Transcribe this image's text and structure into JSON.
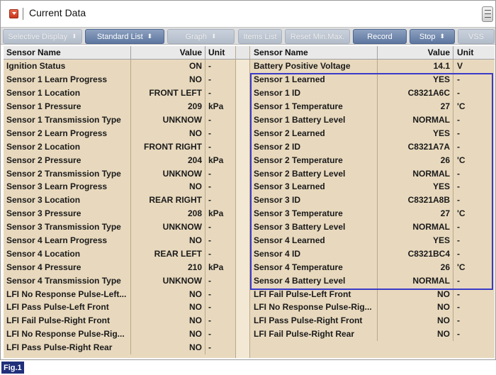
{
  "window": {
    "title": "Current Data"
  },
  "toolbar": {
    "buttons": [
      {
        "label": "Selective Display",
        "state": "disabled",
        "dropdown": true
      },
      {
        "label": "Standard List",
        "state": "active",
        "dropdown": true
      },
      {
        "label": "Graph",
        "state": "disabled",
        "dropdown": true
      },
      {
        "label": "Items List",
        "state": "disabled",
        "dropdown": false
      },
      {
        "label": "Reset Min.Max.",
        "state": "disabled",
        "dropdown": false
      },
      {
        "label": "Record",
        "state": "active",
        "dropdown": false
      },
      {
        "label": "Stop",
        "state": "active",
        "dropdown": true
      },
      {
        "label": "VSS",
        "state": "disabled",
        "dropdown": false
      }
    ]
  },
  "columns": {
    "name": "Sensor Name",
    "value": "Value",
    "unit": "Unit"
  },
  "left_rows": [
    {
      "name": "Ignition Status",
      "value": "ON",
      "unit": "-"
    },
    {
      "name": "Sensor 1 Learn Progress",
      "value": "NO",
      "unit": "-"
    },
    {
      "name": "Sensor 1 Location",
      "value": "FRONT LEFT",
      "unit": "-"
    },
    {
      "name": "Sensor 1 Pressure",
      "value": "209",
      "unit": "kPa"
    },
    {
      "name": "Sensor 1 Transmission Type",
      "value": "UNKNOW",
      "unit": "-"
    },
    {
      "name": "Sensor 2 Learn Progress",
      "value": "NO",
      "unit": "-"
    },
    {
      "name": "Sensor 2 Location",
      "value": "FRONT RIGHT",
      "unit": "-"
    },
    {
      "name": "Sensor 2 Pressure",
      "value": "204",
      "unit": "kPa"
    },
    {
      "name": "Sensor 2 Transmission Type",
      "value": "UNKNOW",
      "unit": "-"
    },
    {
      "name": "Sensor 3 Learn Progress",
      "value": "NO",
      "unit": "-"
    },
    {
      "name": "Sensor 3 Location",
      "value": "REAR RIGHT",
      "unit": "-"
    },
    {
      "name": "Sensor 3 Pressure",
      "value": "208",
      "unit": "kPa"
    },
    {
      "name": "Sensor 3 Transmission Type",
      "value": "UNKNOW",
      "unit": "-"
    },
    {
      "name": "Sensor 4 Learn Progress",
      "value": "NO",
      "unit": "-"
    },
    {
      "name": "Sensor 4 Location",
      "value": "REAR LEFT",
      "unit": "-"
    },
    {
      "name": "Sensor 4 Pressure",
      "value": "210",
      "unit": "kPa"
    },
    {
      "name": "Sensor 4 Transmission Type",
      "value": "UNKNOW",
      "unit": "-"
    },
    {
      "name": "LFI No Response Pulse-Left...",
      "value": "NO",
      "unit": "-"
    },
    {
      "name": "LFI Pass Pulse-Left Front",
      "value": "NO",
      "unit": "-"
    },
    {
      "name": "LFI Fail Pulse-Right Front",
      "value": "NO",
      "unit": "-"
    },
    {
      "name": "LFI No Response Pulse-Rig...",
      "value": "NO",
      "unit": "-"
    },
    {
      "name": "LFI Pass Pulse-Right Rear",
      "value": "NO",
      "unit": "-"
    }
  ],
  "right_rows": [
    {
      "name": "Battery Positive Voltage",
      "value": "14.1",
      "unit": "V"
    },
    {
      "name": "Sensor 1 Learned",
      "value": "YES",
      "unit": "-"
    },
    {
      "name": "Sensor 1 ID",
      "value": "C8321A6C",
      "unit": "-"
    },
    {
      "name": "Sensor 1 Temperature",
      "value": "27",
      "unit": "'C"
    },
    {
      "name": "Sensor 1 Battery Level",
      "value": "NORMAL",
      "unit": "-"
    },
    {
      "name": "Sensor 2 Learned",
      "value": "YES",
      "unit": "-"
    },
    {
      "name": "Sensor 2 ID",
      "value": "C8321A7A",
      "unit": "-"
    },
    {
      "name": "Sensor 2 Temperature",
      "value": "26",
      "unit": "'C"
    },
    {
      "name": "Sensor 2 Battery Level",
      "value": "NORMAL",
      "unit": "-"
    },
    {
      "name": "Sensor 3 Learned",
      "value": "YES",
      "unit": "-"
    },
    {
      "name": "Sensor 3 ID",
      "value": "C8321A8B",
      "unit": "-"
    },
    {
      "name": "Sensor 3 Temperature",
      "value": "27",
      "unit": "'C"
    },
    {
      "name": "Sensor 3 Battery Level",
      "value": "NORMAL",
      "unit": "-"
    },
    {
      "name": "Sensor 4 Learned",
      "value": "YES",
      "unit": "-"
    },
    {
      "name": "Sensor 4 ID",
      "value": "C8321BC4",
      "unit": "-"
    },
    {
      "name": "Sensor 4 Temperature",
      "value": "26",
      "unit": "'C"
    },
    {
      "name": "Sensor 4 Battery Level",
      "value": "NORMAL",
      "unit": "-"
    },
    {
      "name": "LFI Fail Pulse-Left Front",
      "value": "NO",
      "unit": "-"
    },
    {
      "name": "LFI No Response Pulse-Rig...",
      "value": "NO",
      "unit": "-"
    },
    {
      "name": "LFI Pass Pulse-Right Front",
      "value": "NO",
      "unit": "-"
    },
    {
      "name": "LFI Fail Pulse-Right Rear",
      "value": "NO",
      "unit": "-"
    }
  ],
  "figure_label": "Fig.1",
  "colors": {
    "table_bg": "#e8d9be",
    "highlight_border": "#3a3ac8",
    "active_button": "#6a82a8",
    "fig_label_bg": "#1f2f7a"
  }
}
